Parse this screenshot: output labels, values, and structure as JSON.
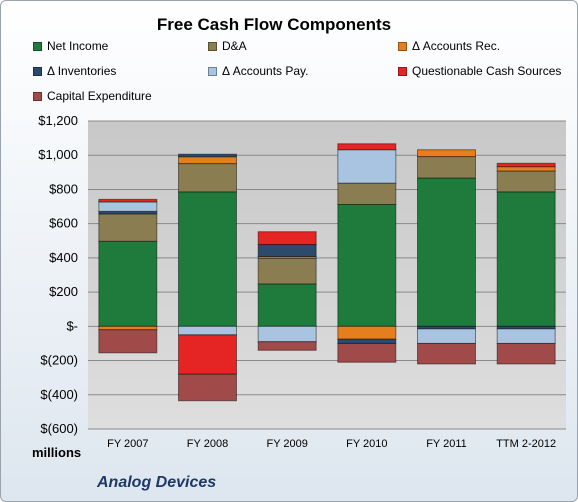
{
  "chart_data": {
    "type": "bar",
    "stacked": true,
    "title": "Free Cash Flow Components",
    "categories": [
      "FY 2007",
      "FY 2008",
      "FY 2009",
      "FY 2010",
      "FY 2011",
      "TTM 2-2012"
    ],
    "ylim": [
      -600,
      1200
    ],
    "yticks": [
      1200,
      1000,
      800,
      600,
      400,
      200,
      0,
      -200,
      -400,
      -600
    ],
    "ytick_labels": [
      "$1,200",
      "$1,000",
      "$800",
      "$600",
      "$400",
      "$200",
      "$-",
      "$(200)",
      "$(400)",
      "$(600)"
    ],
    "units_label": "millions",
    "grid": true,
    "legend_position": "top",
    "series": [
      {
        "name": "Net Income",
        "color": "#1e7b3c",
        "values": [
          497,
          786,
          248,
          712,
          867,
          786
        ]
      },
      {
        "name": "D&A",
        "color": "#8b7d52",
        "values": [
          160,
          165,
          150,
          125,
          125,
          122
        ]
      },
      {
        "name": "Δ Accounts Rec.",
        "color": "#e57f1e",
        "values": [
          -20,
          40,
          10,
          -75,
          40,
          25
        ]
      },
      {
        "name": "Δ Inventories",
        "color": "#2c4a6b",
        "values": [
          15,
          15,
          70,
          -25,
          -15,
          -15
        ]
      },
      {
        "name": "Δ Accounts Pay.",
        "color": "#a8c4e0",
        "values": [
          55,
          -50,
          -90,
          195,
          -85,
          -85
        ]
      },
      {
        "name": "Questionable Cash Sources",
        "color": "#e52424",
        "values": [
          15,
          -230,
          75,
          35,
          0,
          20
        ]
      },
      {
        "name": "Capital Expenditure",
        "color": "#a04a4a",
        "values": [
          -135,
          -155,
          -50,
          -110,
          -120,
          -120
        ]
      }
    ]
  },
  "footer": {
    "company": "Analog Devices"
  }
}
